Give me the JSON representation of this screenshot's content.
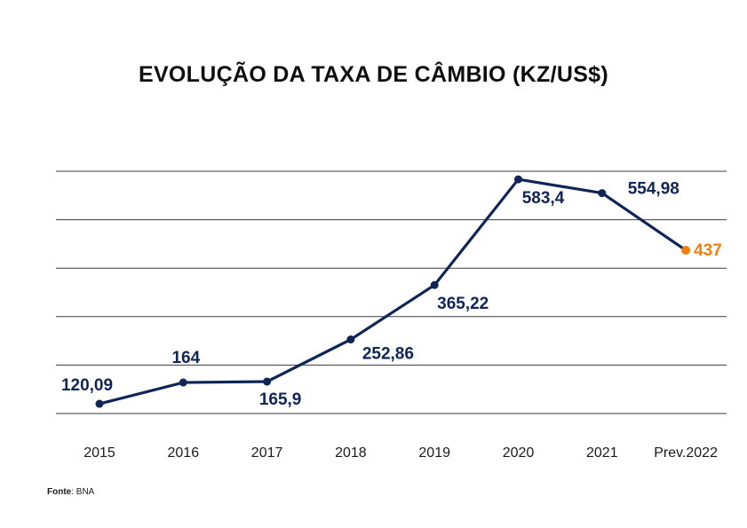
{
  "title": "EVOLUÇÃO DA TAXA DE CÂMBIO (KZ/US$)",
  "source": {
    "label": "Fonte",
    "value": ": BNA"
  },
  "colors": {
    "line": "#0f2557",
    "forecast": "#f07f0b",
    "grid": "#3a3a3a",
    "text": "#1a1a1a"
  },
  "chart_data": {
    "type": "line",
    "title": "EVOLUÇÃO DA TAXA DE CÂMBIO (KZ/US$)",
    "xlabel": "",
    "ylabel": "",
    "categories": [
      "2015",
      "2016",
      "2017",
      "2018",
      "2019",
      "2020",
      "2021",
      "Prev.2022"
    ],
    "values": [
      120.09,
      164,
      165.9,
      252.86,
      365.22,
      583.4,
      554.98,
      437
    ],
    "value_labels": [
      "120,09",
      "164",
      "165,9",
      "252,86",
      "365,22",
      "583,4",
      "554,98",
      "437"
    ],
    "forecast_index": 7,
    "ylim": [
      100,
      600
    ],
    "gridlines": [
      100,
      200,
      300,
      400,
      500,
      600
    ],
    "grid": true,
    "legend": "none"
  }
}
